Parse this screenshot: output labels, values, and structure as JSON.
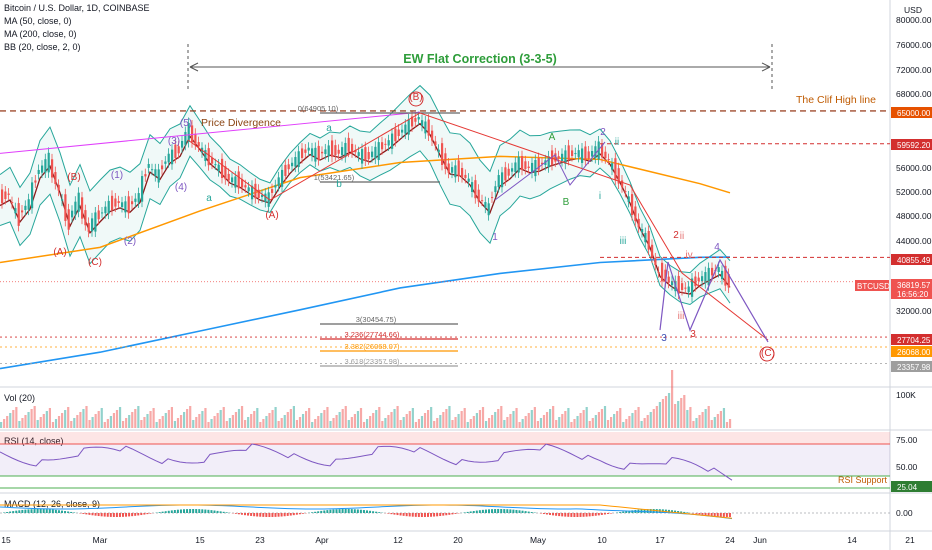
{
  "header": {
    "symbol_line": "Bitcoin / U.S. Dollar, 1D, COINBASE",
    "ma50": "MA (50, close, 0)",
    "ma200": "MA (200, close, 0)",
    "bb": "BB (20, close, 2, 0)",
    "currency": "USD"
  },
  "panes": {
    "vol_label": "Vol (20)",
    "vol_tick": "100K",
    "rsi_label": "RSI (14, close)",
    "rsi_ticks": [
      "75.00",
      "50.00"
    ],
    "rsi_value": "25.04",
    "rsi_support_label": "RSI Support",
    "macd_label": "MACD (12, 26, close, 9)",
    "macd_tick": "0.00"
  },
  "chart_data": {
    "type": "candlestick",
    "symbol": "BTCUSD",
    "title": "EW Flat Correction  (3-3-5)",
    "y_ticks": [
      "80000.00",
      "76000.00",
      "72000.00",
      "68000.00",
      "56000.00",
      "52000.00",
      "48000.00",
      "44000.00",
      "32000.00"
    ],
    "x_ticks": [
      "15",
      "Mar",
      "15",
      "23",
      "Apr",
      "12",
      "20",
      "May",
      "10",
      "17",
      "24",
      "Jun",
      "14",
      "21"
    ],
    "price_labels": [
      {
        "value": "65000.00",
        "color": "#e65100"
      },
      {
        "value": "59592.20",
        "color": "#d32f2f"
      },
      {
        "value": "40855.49",
        "color": "#d32f2f"
      },
      {
        "value": "36819.57",
        "color": "#ef5350"
      },
      {
        "value": "16:56:20",
        "color": "#ef5350"
      },
      {
        "value": "27704.25",
        "color": "#d32f2f"
      },
      {
        "value": "26068.00",
        "color": "#ff9800"
      },
      {
        "value": "23357.98",
        "color": "#9e9e9e"
      }
    ],
    "current_price_tag": "BTCUSD",
    "cliff_high_label": "The Clif High line",
    "price_divergence_label": "Price Divergence",
    "fib_labels": [
      "0(64905.10)",
      "1(53421.65)",
      "3(30454.75)",
      "3.236(27744.66)",
      "3.382(26068.07)",
      "3.618(23357.98)"
    ],
    "wave_labels_red": [
      "(A)",
      "(B)",
      "(C)",
      "(A)",
      "(B)",
      "(C)",
      "2",
      "3",
      "2"
    ],
    "wave_labels_purple": [
      "(1)",
      "(2)",
      "(3)",
      "(4)",
      "(5)",
      "1",
      "2",
      "4"
    ],
    "wave_labels_green": [
      "a",
      "b",
      "A",
      "B"
    ],
    "wave_labels_teal": [
      "a",
      "b",
      "i",
      "ii",
      "iii",
      "3",
      "ii",
      "iii",
      "iv"
    ],
    "price_path": [
      [
        0,
        50300
      ],
      [
        10,
        51200
      ],
      [
        20,
        47600
      ],
      [
        30,
        49700
      ],
      [
        40,
        54800
      ],
      [
        50,
        56800
      ],
      [
        60,
        52400
      ],
      [
        70,
        46900
      ],
      [
        80,
        50200
      ],
      [
        90,
        45800
      ],
      [
        100,
        47600
      ],
      [
        110,
        49300
      ],
      [
        120,
        49900
      ],
      [
        130,
        49200
      ],
      [
        140,
        50800
      ],
      [
        150,
        55800
      ],
      [
        160,
        54600
      ],
      [
        170,
        57300
      ],
      [
        180,
        58400
      ],
      [
        190,
        61700
      ],
      [
        200,
        59500
      ],
      [
        210,
        57200
      ],
      [
        220,
        55800
      ],
      [
        230,
        54000
      ],
      [
        240,
        53300
      ],
      [
        250,
        52200
      ],
      [
        260,
        51200
      ],
      [
        270,
        50700
      ],
      [
        280,
        53400
      ],
      [
        290,
        55600
      ],
      [
        300,
        57300
      ],
      [
        310,
        58700
      ],
      [
        320,
        57800
      ],
      [
        330,
        58600
      ],
      [
        340,
        58200
      ],
      [
        350,
        59100
      ],
      [
        360,
        58000
      ],
      [
        370,
        57500
      ],
      [
        380,
        58700
      ],
      [
        390,
        59800
      ],
      [
        400,
        61200
      ],
      [
        410,
        62600
      ],
      [
        420,
        63800
      ],
      [
        430,
        62000
      ],
      [
        440,
        58600
      ],
      [
        450,
        55500
      ],
      [
        460,
        55200
      ],
      [
        470,
        53700
      ],
      [
        480,
        50900
      ],
      [
        490,
        49100
      ],
      [
        500,
        53500
      ],
      [
        510,
        54700
      ],
      [
        520,
        56400
      ],
      [
        530,
        55700
      ],
      [
        540,
        56000
      ],
      [
        550,
        56800
      ],
      [
        560,
        57300
      ],
      [
        570,
        57800
      ],
      [
        580,
        58100
      ],
      [
        590,
        57600
      ],
      [
        600,
        58800
      ],
      [
        610,
        57100
      ],
      [
        620,
        54100
      ],
      [
        630,
        50700
      ],
      [
        640,
        46500
      ],
      [
        650,
        43400
      ],
      [
        660,
        38600
      ],
      [
        670,
        37100
      ],
      [
        680,
        36000
      ],
      [
        690,
        35700
      ],
      [
        700,
        37100
      ],
      [
        710,
        38000
      ],
      [
        720,
        38900
      ],
      [
        730,
        36800
      ]
    ],
    "ma50": [
      [
        0,
        40000
      ],
      [
        100,
        42500
      ],
      [
        200,
        48500
      ],
      [
        300,
        54000
      ],
      [
        400,
        56500
      ],
      [
        500,
        57500
      ],
      [
        600,
        57000
      ],
      [
        700,
        53000
      ],
      [
        730,
        51500
      ]
    ],
    "ma200": [
      [
        0,
        22500
      ],
      [
        100,
        25200
      ],
      [
        200,
        28700
      ],
      [
        300,
        32200
      ],
      [
        400,
        35800
      ],
      [
        500,
        38200
      ],
      [
        600,
        40000
      ],
      [
        700,
        40850
      ],
      [
        730,
        40900
      ]
    ]
  }
}
